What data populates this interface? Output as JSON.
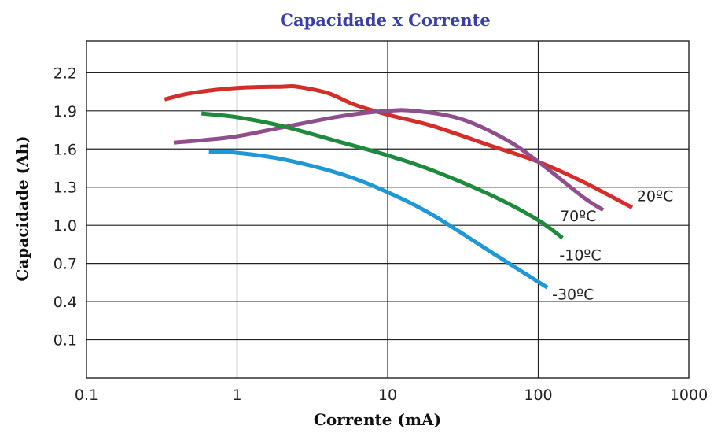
{
  "chart_data": {
    "type": "line",
    "title": "Capacidade x Corrente",
    "xlabel": "Corrente (mA)",
    "ylabel": "Capacidade (Ah)",
    "x_scale": "log",
    "xlim": [
      0.1,
      1000
    ],
    "ylim": [
      -0.2,
      2.45
    ],
    "x_ticks": [
      0.1,
      1,
      10,
      100,
      1000
    ],
    "x_tick_labels": [
      "0.1",
      "1",
      "10",
      "100",
      "1000"
    ],
    "y_ticks": [
      0.1,
      0.4,
      0.7,
      1.0,
      1.3,
      1.6,
      1.9,
      2.2
    ],
    "y_tick_labels": [
      "0.1",
      "0.4",
      "0.7",
      "1.0",
      "1.3",
      "1.6",
      "1.9",
      "2.2"
    ],
    "grid": true,
    "title_color": "#3b3fa3",
    "series": [
      {
        "name": "20ºC",
        "color": "#d42e2a",
        "points": [
          [
            0.33,
            1.99
          ],
          [
            0.5,
            2.04
          ],
          [
            1.0,
            2.08
          ],
          [
            2.0,
            2.09
          ],
          [
            2.5,
            2.09
          ],
          [
            4.0,
            2.04
          ],
          [
            6.0,
            1.95
          ],
          [
            10.0,
            1.87
          ],
          [
            20.0,
            1.78
          ],
          [
            50.0,
            1.62
          ],
          [
            100.0,
            1.5
          ],
          [
            200.0,
            1.34
          ],
          [
            420.0,
            1.14
          ]
        ]
      },
      {
        "name": "70ºC",
        "color": "#8e4f8c",
        "points": [
          [
            0.38,
            1.65
          ],
          [
            0.6,
            1.67
          ],
          [
            1.0,
            1.7
          ],
          [
            2.0,
            1.77
          ],
          [
            5.0,
            1.86
          ],
          [
            10.0,
            1.9
          ],
          [
            15.0,
            1.9
          ],
          [
            30.0,
            1.84
          ],
          [
            60.0,
            1.68
          ],
          [
            100.0,
            1.5
          ],
          [
            200.0,
            1.22
          ],
          [
            270.0,
            1.12
          ]
        ]
      },
      {
        "name": "-10ºC",
        "color": "#1f8a3e",
        "points": [
          [
            0.58,
            1.88
          ],
          [
            1.0,
            1.85
          ],
          [
            2.0,
            1.78
          ],
          [
            5.0,
            1.65
          ],
          [
            10.0,
            1.55
          ],
          [
            20.0,
            1.43
          ],
          [
            50.0,
            1.23
          ],
          [
            100.0,
            1.04
          ],
          [
            145.0,
            0.9
          ]
        ]
      },
      {
        "name": "-30ºC",
        "color": "#2198d6",
        "points": [
          [
            0.65,
            1.58
          ],
          [
            1.0,
            1.57
          ],
          [
            2.0,
            1.52
          ],
          [
            5.0,
            1.4
          ],
          [
            10.0,
            1.26
          ],
          [
            20.0,
            1.08
          ],
          [
            50.0,
            0.78
          ],
          [
            115.0,
            0.51
          ]
        ]
      }
    ]
  }
}
